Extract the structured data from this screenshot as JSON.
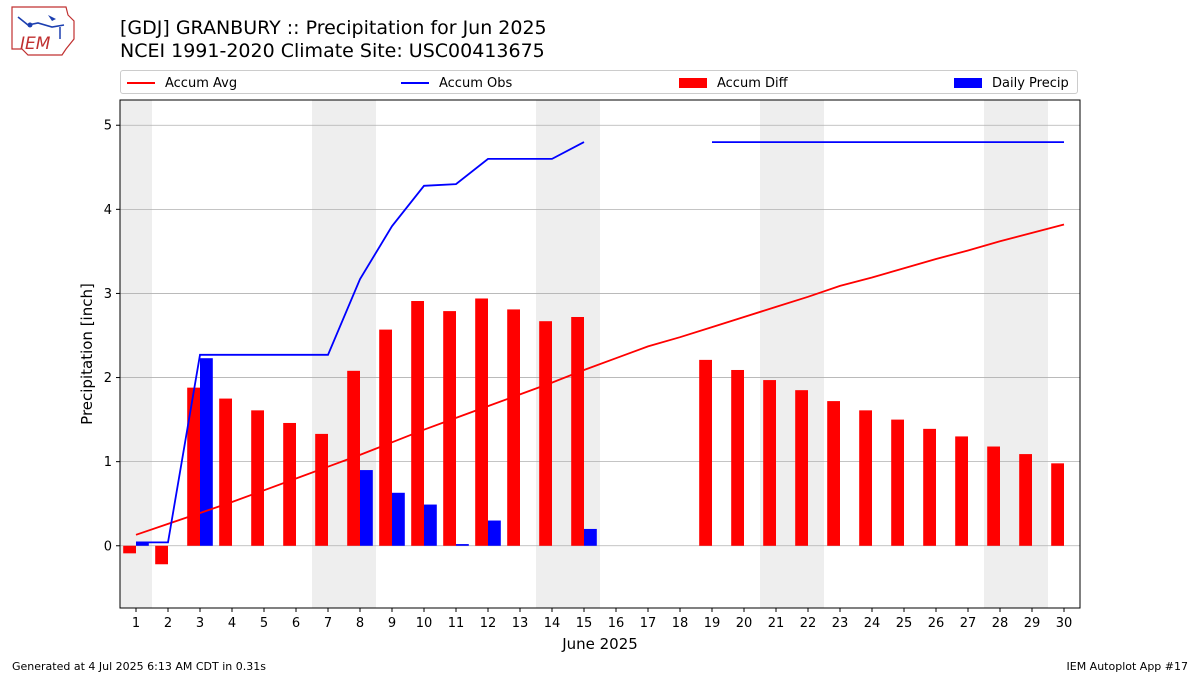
{
  "header": {
    "title_line1": "[GDJ] GRANBURY :: Precipitation for Jun 2025",
    "title_line2": "NCEI 1991-2020 Climate Site: USC00413675",
    "logo_text": "IEM"
  },
  "footer": {
    "left": "Generated at 4 Jul 2025 6:13 AM CDT in 0.31s",
    "right": "IEM Autoplot App #17"
  },
  "colors": {
    "avg": "#ff0000",
    "obs": "#0000ff",
    "diff": "#ff0000",
    "precip": "#0000ff",
    "weekend_band": "#eeeeee",
    "grid": "#b0b0b0"
  },
  "chart_data": {
    "type": "bar",
    "xlabel": "June 2025",
    "ylabel": "Precipitation [inch]",
    "xlim": [
      0.5,
      30.5
    ],
    "ylim": [
      -0.74,
      5.3
    ],
    "yticks": [
      0,
      1,
      2,
      3,
      4,
      5
    ],
    "xticks": [
      1,
      2,
      3,
      4,
      5,
      6,
      7,
      8,
      9,
      10,
      11,
      12,
      13,
      14,
      15,
      16,
      17,
      18,
      19,
      20,
      21,
      22,
      23,
      24,
      25,
      26,
      27,
      28,
      29,
      30
    ],
    "grid": "horizontal",
    "legend_position": "top",
    "weekend_bands": [
      [
        0.5,
        1.5
      ],
      [
        6.5,
        8.5
      ],
      [
        13.5,
        15.5
      ],
      [
        20.5,
        22.5
      ],
      [
        27.5,
        29.5
      ]
    ],
    "series": [
      {
        "name": "Accum Avg",
        "kind": "line",
        "x": [
          1,
          2,
          3,
          4,
          5,
          6,
          7,
          8,
          9,
          10,
          11,
          12,
          13,
          14,
          15,
          16,
          17,
          18,
          19,
          20,
          21,
          22,
          23,
          24,
          25,
          26,
          27,
          28,
          29,
          30
        ],
        "values": [
          0.13,
          0.26,
          0.39,
          0.52,
          0.66,
          0.8,
          0.94,
          1.08,
          1.23,
          1.38,
          1.52,
          1.66,
          1.8,
          1.94,
          2.09,
          2.23,
          2.37,
          2.48,
          2.6,
          2.72,
          2.84,
          2.96,
          3.09,
          3.19,
          3.3,
          3.41,
          3.51,
          3.62,
          3.72,
          3.82
        ]
      },
      {
        "name": "Accum Obs",
        "kind": "line",
        "x": [
          1,
          2,
          3,
          4,
          5,
          6,
          7,
          8,
          9,
          10,
          11,
          12,
          13,
          14,
          15,
          16,
          17,
          18,
          19,
          20,
          21,
          22,
          23,
          24,
          25,
          26,
          27,
          28,
          29,
          30
        ],
        "values": [
          0.04,
          0.04,
          2.27,
          2.27,
          2.27,
          2.27,
          2.27,
          3.17,
          3.8,
          4.28,
          4.3,
          4.6,
          4.6,
          4.6,
          4.8,
          null,
          null,
          null,
          4.8,
          4.8,
          4.8,
          4.8,
          4.8,
          4.8,
          4.8,
          4.8,
          4.8,
          4.8,
          4.8,
          4.8
        ]
      },
      {
        "name": "Accum Diff",
        "kind": "bar",
        "x": [
          1,
          2,
          3,
          4,
          5,
          6,
          7,
          8,
          9,
          10,
          11,
          12,
          13,
          14,
          15,
          16,
          17,
          18,
          19,
          20,
          21,
          22,
          23,
          24,
          25,
          26,
          27,
          28,
          29,
          30
        ],
        "values": [
          -0.09,
          -0.22,
          1.88,
          1.75,
          1.61,
          1.46,
          1.33,
          2.08,
          2.57,
          2.91,
          2.79,
          2.94,
          2.81,
          2.67,
          2.72,
          null,
          null,
          null,
          2.21,
          2.09,
          1.97,
          1.85,
          1.72,
          1.61,
          1.5,
          1.39,
          1.3,
          1.18,
          1.09,
          0.98
        ]
      },
      {
        "name": "Daily Precip",
        "kind": "bar",
        "x": [
          1,
          2,
          3,
          4,
          5,
          6,
          7,
          8,
          9,
          10,
          11,
          12,
          13,
          14,
          15,
          16,
          17,
          18,
          19,
          20,
          21,
          22,
          23,
          24,
          25,
          26,
          27,
          28,
          29,
          30
        ],
        "values": [
          0.04,
          0,
          2.23,
          0,
          0,
          0,
          0,
          0.9,
          0.63,
          0.49,
          0.02,
          0.3,
          0,
          0,
          0.2,
          null,
          null,
          null,
          0,
          0,
          0,
          0,
          0,
          0,
          0,
          0,
          0,
          0,
          0,
          0
        ]
      }
    ]
  }
}
